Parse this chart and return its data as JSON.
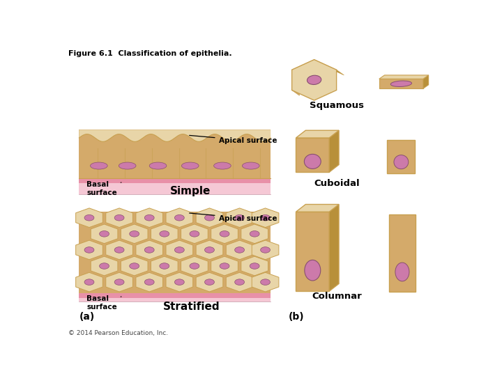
{
  "title": "Figure 6.1  Classification of epithelia.",
  "copyright": "© 2014 Pearson Education, Inc.",
  "bg_color": "#ffffff",
  "cell_tan_light": "#e8d5a8",
  "cell_tan_dark": "#c8a050",
  "cell_tan_mid": "#d4aa6a",
  "cell_tan_side": "#b8903a",
  "nucleus_color": "#cc7aaa",
  "nucleus_dark": "#885070",
  "pink_layer": "#e890a8",
  "pink_light": "#f5c8d5",
  "label_simple": "Simple",
  "label_stratified": "Stratified",
  "label_squamous": "Squamous",
  "label_cuboidal": "Cuboidal",
  "label_columnar": "Columnar",
  "label_a": "(a)",
  "label_b": "(b)",
  "label_apical": "Apical surface",
  "label_basal": "Basal\nsurface"
}
